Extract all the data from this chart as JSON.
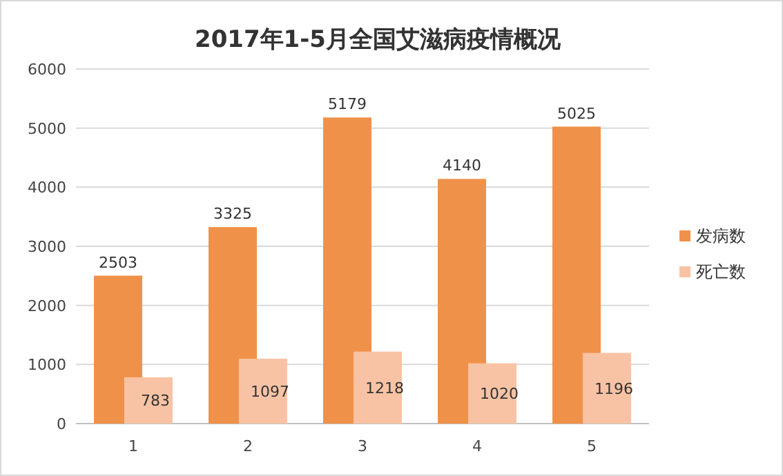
{
  "chart_data": {
    "type": "bar",
    "title": "2017年1-5月全国艾滋病疫情概况",
    "categories": [
      "1",
      "2",
      "3",
      "4",
      "5"
    ],
    "series": [
      {
        "name": "发病数",
        "color": "#f0914a",
        "values": [
          2503,
          3325,
          5179,
          4140,
          5025
        ]
      },
      {
        "name": "死亡数",
        "color": "#f8c3a4",
        "values": [
          783,
          1097,
          1218,
          1020,
          1196
        ]
      }
    ],
    "ylim": [
      0,
      6000
    ],
    "yticks": [
      0,
      1000,
      2000,
      3000,
      4000,
      5000,
      6000
    ],
    "grid": "y",
    "legend": "right",
    "data_labels": true
  }
}
